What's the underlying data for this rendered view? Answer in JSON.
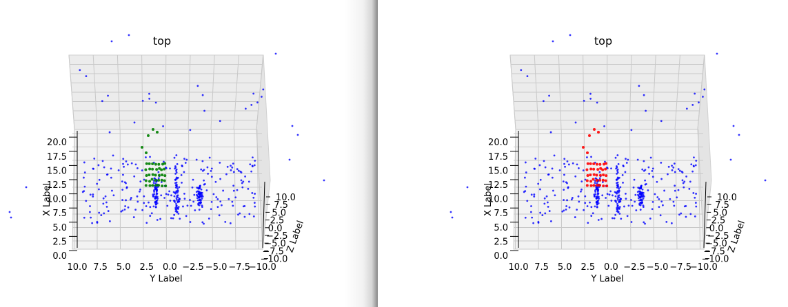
{
  "chart_data": [
    {
      "type": "scatter3d",
      "title": "top",
      "view": "top",
      "xlabel": "X Label",
      "ylabel": "Y Label",
      "zlabel": "Z Label",
      "x_ticks": [
        "0.0",
        "2.5",
        "5.0",
        "7.5",
        "10.0",
        "12.5",
        "15.0",
        "17.5",
        "20.0"
      ],
      "y_ticks": [
        "10.0",
        "7.5",
        "5.0",
        "2.5",
        "0.0",
        "−2.5",
        "−5.0",
        "−7.5",
        "−10.0"
      ],
      "z_ticks": [
        "10.0",
        "7.5",
        "5.0",
        "2.5",
        "0.0",
        "−2.5",
        "−5.0",
        "−7.5",
        "−10.0"
      ],
      "xlim": [
        0,
        21
      ],
      "ylim": [
        10,
        -10
      ],
      "grid": true,
      "series": [
        {
          "color": "#0000ff",
          "role": "background points"
        },
        {
          "color": "#008000",
          "role": "highlighted points"
        }
      ]
    },
    {
      "type": "scatter3d",
      "title": "top",
      "view": "top",
      "xlabel": "X Label",
      "ylabel": "Y Label",
      "zlabel": "Z Label",
      "x_ticks": [
        "0.0",
        "2.5",
        "5.0",
        "7.5",
        "10.0",
        "12.5",
        "15.0",
        "17.5",
        "20.0"
      ],
      "y_ticks": [
        "10.0",
        "7.5",
        "5.0",
        "2.5",
        "0.0",
        "−2.5",
        "−5.0",
        "−7.5",
        "−10.0"
      ],
      "z_ticks": [
        "10.0",
        "7.5",
        "5.0",
        "2.5",
        "0.0",
        "−2.5",
        "−5.0",
        "−7.5",
        "−10.0"
      ],
      "xlim": [
        0,
        21
      ],
      "ylim": [
        10,
        -10
      ],
      "grid": true,
      "series": [
        {
          "color": "#0000ff",
          "role": "background points"
        },
        {
          "color": "#ff0000",
          "role": "highlighted points"
        }
      ]
    }
  ]
}
